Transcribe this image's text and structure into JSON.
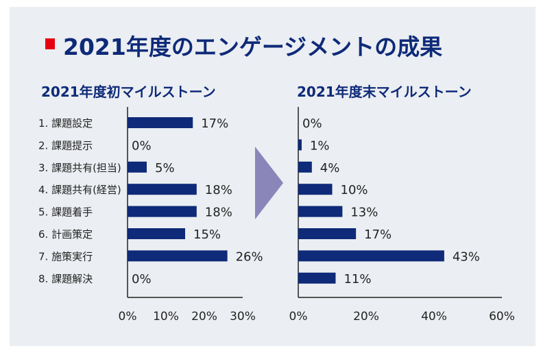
{
  "title": "2021年度のエンゲージメントの成果",
  "colors": {
    "accent": "#E60012",
    "bar": "#0E2A78",
    "title": "#0E2A78",
    "arrow": "#8A86BA",
    "background": "#EBEEF2"
  },
  "chart_data": [
    {
      "type": "bar",
      "orientation": "horizontal",
      "title": "2021年度初マイルストーン",
      "categories": [
        "1. 課題設定",
        "2. 課題提示",
        "3. 課題共有(担当)",
        "4. 課題共有(経営)",
        "5. 課題着手",
        "6. 計画策定",
        "7. 施策実行",
        "8. 課題解決"
      ],
      "values": [
        17,
        0,
        5,
        18,
        18,
        15,
        26,
        0
      ],
      "value_labels": [
        "17%",
        "0%",
        "5%",
        "18%",
        "18%",
        "15%",
        "26%",
        "0%"
      ],
      "xlim": [
        0,
        30
      ],
      "ticks": [
        0,
        10,
        20,
        30
      ],
      "tick_labels": [
        "0%",
        "10%",
        "20%",
        "30%"
      ],
      "grid": false
    },
    {
      "type": "bar",
      "orientation": "horizontal",
      "title": "2021年度末マイルストーン",
      "categories": [
        "1. 課題設定",
        "2. 課題提示",
        "3. 課題共有(担当)",
        "4. 課題共有(経営)",
        "5. 課題着手",
        "6. 計画策定",
        "7. 施策実行",
        "8. 課題解決"
      ],
      "values": [
        0,
        1,
        4,
        10,
        13,
        17,
        43,
        11
      ],
      "value_labels": [
        "0%",
        "1%",
        "4%",
        "10%",
        "13%",
        "17%",
        "43%",
        "11%"
      ],
      "xlim": [
        0,
        60
      ],
      "ticks": [
        0,
        20,
        40,
        60
      ],
      "tick_labels": [
        "0%",
        "20%",
        "40%",
        "60%"
      ],
      "grid": false
    }
  ]
}
